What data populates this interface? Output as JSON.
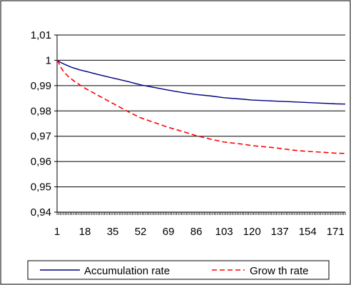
{
  "chart_data": {
    "type": "line",
    "title": "",
    "xlabel": "",
    "ylabel": "",
    "ylim": [
      0.94,
      1.01
    ],
    "yticks": [
      "1,01",
      "1",
      "0,99",
      "0,98",
      "0,97",
      "0,96",
      "0,95",
      "0,94"
    ],
    "xlim": [
      1,
      177
    ],
    "xticks": [
      "1",
      "18",
      "35",
      "52",
      "69",
      "86",
      "103",
      "120",
      "137",
      "154",
      "171"
    ],
    "grid": true,
    "legend_position": "bottom",
    "series": [
      {
        "name": "Accumulation rate",
        "color": "#000080",
        "style": "solid",
        "x": [
          1,
          3,
          6,
          10,
          15,
          20,
          26,
          35,
          45,
          52,
          60,
          69,
          80,
          86,
          95,
          103,
          115,
          120,
          130,
          137,
          145,
          154,
          165,
          171,
          177
        ],
        "y": [
          1.0,
          0.9992,
          0.9983,
          0.9972,
          0.9962,
          0.9954,
          0.9944,
          0.993,
          0.9915,
          0.9903,
          0.9893,
          0.9882,
          0.987,
          0.9865,
          0.9859,
          0.9852,
          0.9846,
          0.9843,
          0.984,
          0.9838,
          0.9836,
          0.9833,
          0.983,
          0.9828,
          0.9827
        ]
      },
      {
        "name": "Grow th rate",
        "color": "#ff0000",
        "style": "dashed",
        "x": [
          1,
          2,
          3,
          5,
          8,
          12,
          18,
          25,
          35,
          45,
          52,
          60,
          69,
          78,
          86,
          95,
          103,
          115,
          120,
          130,
          137,
          145,
          154,
          165,
          171,
          177
        ],
        "y": [
          1.0,
          0.999,
          0.9975,
          0.9955,
          0.9935,
          0.9915,
          0.989,
          0.9865,
          0.983,
          0.9795,
          0.9773,
          0.9755,
          0.9735,
          0.9718,
          0.9702,
          0.9688,
          0.9677,
          0.9668,
          0.9663,
          0.9657,
          0.9652,
          0.9645,
          0.964,
          0.9636,
          0.9633,
          0.9632
        ]
      }
    ]
  }
}
